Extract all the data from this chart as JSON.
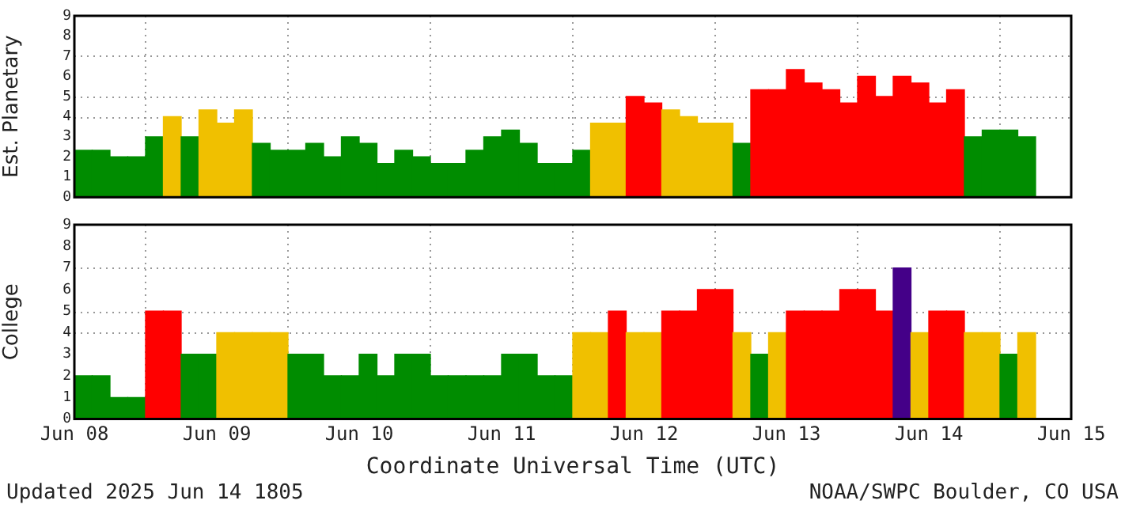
{
  "chart_data": [
    {
      "type": "bar",
      "ylabel": "Est. Planetary",
      "tick_labels": "y",
      "grid": "x",
      "x": [
        "2025-06-08T01:30",
        "2025-06-08T04:30",
        "2025-06-08T07:30",
        "2025-06-08T10:30",
        "2025-06-08T13:30",
        "2025-06-08T16:30",
        "2025-06-08T19:30",
        "2025-06-08T22:30",
        "2025-06-09T01:30",
        "2025-06-09T04:30",
        "2025-06-09T07:30",
        "2025-06-09T10:30",
        "2025-06-09T13:30",
        "2025-06-09T16:30",
        "2025-06-09T19:30",
        "2025-06-09T22:30",
        "2025-06-10T01:30",
        "2025-06-10T04:30",
        "2025-06-10T07:30",
        "2025-06-10T10:30",
        "2025-06-10T13:30",
        "2025-06-10T16:30",
        "2025-06-10T19:30",
        "2025-06-10T22:30",
        "2025-06-11T01:30",
        "2025-06-11T04:30",
        "2025-06-11T07:30",
        "2025-06-11T10:30",
        "2025-06-11T13:30",
        "2025-06-11T16:30",
        "2025-06-11T19:30",
        "2025-06-11T22:30",
        "2025-06-12T01:30",
        "2025-06-12T04:30",
        "2025-06-12T07:30",
        "2025-06-12T10:30",
        "2025-06-12T13:30",
        "2025-06-12T16:30",
        "2025-06-12T19:30",
        "2025-06-12T22:30",
        "2025-06-13T01:30",
        "2025-06-13T04:30",
        "2025-06-13T07:30",
        "2025-06-13T10:30",
        "2025-06-13T13:30",
        "2025-06-13T16:30",
        "2025-06-13T19:30",
        "2025-06-13T22:30",
        "2025-06-14T01:30",
        "2025-06-14T04:30",
        "2025-06-14T07:30",
        "2025-06-14T10:30",
        "2025-06-14T13:30",
        "2025-06-14T16:30"
      ],
      "values": [
        2.33,
        2.33,
        2,
        2,
        3,
        4,
        3,
        4.33,
        3.67,
        4.33,
        2.67,
        2.33,
        2.33,
        2.67,
        2,
        3,
        2.67,
        1.67,
        2.33,
        2,
        1.67,
        1.67,
        2.33,
        3,
        3.33,
        2.67,
        1.67,
        1.67,
        2.33,
        3.67,
        3.67,
        5,
        4.67,
        4.33,
        4,
        3.67,
        3.67,
        2.67,
        5.33,
        5.33,
        6.33,
        5.67,
        5.33,
        4.67,
        6,
        5,
        6,
        5.67,
        4.67,
        5.33,
        3,
        3.33,
        3.33,
        3
      ],
      "colors": [
        "#008c00",
        "#008c00",
        "#008c00",
        "#008c00",
        "#008c00",
        "#f0c000",
        "#008c00",
        "#f0c000",
        "#f0c000",
        "#f0c000",
        "#008c00",
        "#008c00",
        "#008c00",
        "#008c00",
        "#008c00",
        "#008c00",
        "#008c00",
        "#008c00",
        "#008c00",
        "#008c00",
        "#008c00",
        "#008c00",
        "#008c00",
        "#008c00",
        "#008c00",
        "#008c00",
        "#008c00",
        "#008c00",
        "#008c00",
        "#f0c000",
        "#f0c000",
        "#ff0000",
        "#ff0000",
        "#f0c000",
        "#f0c000",
        "#f0c000",
        "#f0c000",
        "#008c00",
        "#ff0000",
        "#ff0000",
        "#ff0000",
        "#ff0000",
        "#ff0000",
        "#ff0000",
        "#ff0000",
        "#ff0000",
        "#ff0000",
        "#ff0000",
        "#ff0000",
        "#ff0000",
        "#008c00",
        "#008c00",
        "#008c00",
        "#008c00"
      ],
      "xlim": [
        "2025-06-08",
        "2025-06-15"
      ],
      "xticks": [
        {
          "value": "2025-06-08",
          "label": null
        },
        {
          "value": "2025-06-09",
          "label": null
        },
        {
          "value": "2025-06-10",
          "label": null
        },
        {
          "value": "2025-06-11",
          "label": null
        },
        {
          "value": "2025-06-12",
          "label": null
        },
        {
          "value": "2025-06-13",
          "label": null
        },
        {
          "value": "2025-06-14",
          "label": null
        },
        {
          "value": "2025-06-15",
          "label": null
        }
      ],
      "ylim": [
        0,
        9
      ],
      "yticks": [
        0,
        1,
        2,
        3,
        4,
        5,
        6,
        7,
        8,
        9
      ],
      "ref_lines": [
        {
          "axis": "y",
          "value": 4,
          "color": "#999999",
          "line_style": "dotted"
        },
        {
          "axis": "y",
          "value": 5,
          "color": "#999999",
          "line_style": "dotted"
        },
        {
          "axis": "y",
          "value": 7,
          "color": "#999999",
          "line_style": "dotted"
        }
      ]
    },
    {
      "type": "bar",
      "ylabel": "College",
      "xlabel": "Coordinate Universal Time (UTC)",
      "grid": "x",
      "x": [
        "2025-06-08T01:30",
        "2025-06-08T04:30",
        "2025-06-08T07:30",
        "2025-06-08T10:30",
        "2025-06-08T13:30",
        "2025-06-08T16:30",
        "2025-06-08T19:30",
        "2025-06-08T22:30",
        "2025-06-09T01:30",
        "2025-06-09T04:30",
        "2025-06-09T07:30",
        "2025-06-09T10:30",
        "2025-06-09T13:30",
        "2025-06-09T16:30",
        "2025-06-09T19:30",
        "2025-06-09T22:30",
        "2025-06-10T01:30",
        "2025-06-10T04:30",
        "2025-06-10T07:30",
        "2025-06-10T10:30",
        "2025-06-10T13:30",
        "2025-06-10T16:30",
        "2025-06-10T19:30",
        "2025-06-10T22:30",
        "2025-06-11T01:30",
        "2025-06-11T04:30",
        "2025-06-11T07:30",
        "2025-06-11T10:30",
        "2025-06-11T13:30",
        "2025-06-11T16:30",
        "2025-06-11T19:30",
        "2025-06-11T22:30",
        "2025-06-12T01:30",
        "2025-06-12T04:30",
        "2025-06-12T07:30",
        "2025-06-12T10:30",
        "2025-06-12T13:30",
        "2025-06-12T16:30",
        "2025-06-12T19:30",
        "2025-06-12T22:30",
        "2025-06-13T01:30",
        "2025-06-13T04:30",
        "2025-06-13T07:30",
        "2025-06-13T10:30",
        "2025-06-13T13:30",
        "2025-06-13T16:30",
        "2025-06-13T19:30",
        "2025-06-13T22:30",
        "2025-06-14T01:30",
        "2025-06-14T04:30",
        "2025-06-14T07:30",
        "2025-06-14T10:30",
        "2025-06-14T13:30",
        "2025-06-14T16:30",
        "2025-06-14T19:30",
        "2025-06-14T22:30"
      ],
      "values": [
        2,
        2,
        1,
        1,
        5,
        5,
        3,
        3,
        4,
        4,
        4,
        4,
        3,
        3,
        2,
        2,
        3,
        2,
        3,
        3,
        2,
        2,
        2,
        2,
        3,
        3,
        2,
        2,
        4,
        4,
        5,
        4,
        4,
        5,
        5,
        6,
        6,
        4,
        3,
        4,
        5,
        5,
        5,
        6,
        6,
        5,
        7,
        4,
        5,
        5,
        4,
        4,
        3,
        4,
        0,
        0
      ],
      "colors": [
        "#008c00",
        "#008c00",
        "#008c00",
        "#008c00",
        "#ff0000",
        "#ff0000",
        "#008c00",
        "#008c00",
        "#f0c000",
        "#f0c000",
        "#f0c000",
        "#f0c000",
        "#008c00",
        "#008c00",
        "#008c00",
        "#008c00",
        "#008c00",
        "#008c00",
        "#008c00",
        "#008c00",
        "#008c00",
        "#008c00",
        "#008c00",
        "#008c00",
        "#008c00",
        "#008c00",
        "#008c00",
        "#008c00",
        "#f0c000",
        "#f0c000",
        "#ff0000",
        "#f0c000",
        "#f0c000",
        "#ff0000",
        "#ff0000",
        "#ff0000",
        "#ff0000",
        "#f0c000",
        "#008c00",
        "#f0c000",
        "#ff0000",
        "#ff0000",
        "#ff0000",
        "#ff0000",
        "#ff0000",
        "#ff0000",
        "#440088",
        "#f0c000",
        "#ff0000",
        "#ff0000",
        "#f0c000",
        "#f0c000",
        "#008c00",
        "#f0c000",
        "#008c00",
        "#008c00"
      ],
      "xlim": [
        "2025-06-08",
        "2025-06-15"
      ],
      "xticks": [
        {
          "value": "2025-06-08",
          "label": "Jun 08"
        },
        {
          "value": "2025-06-09",
          "label": "Jun 09"
        },
        {
          "value": "2025-06-10",
          "label": "Jun 10"
        },
        {
          "value": "2025-06-11",
          "label": "Jun 11"
        },
        {
          "value": "2025-06-12",
          "label": "Jun 12"
        },
        {
          "value": "2025-06-13",
          "label": "Jun 13"
        },
        {
          "value": "2025-06-14",
          "label": "Jun 14"
        },
        {
          "value": "2025-06-15",
          "label": "Jun 15"
        }
      ],
      "ylim": [
        0,
        9
      ],
      "yticks": [
        0,
        1,
        2,
        3,
        4,
        5,
        6,
        7,
        8,
        9
      ],
      "ref_lines": [
        {
          "axis": "y",
          "value": 4,
          "color": "#999999",
          "line_style": "dotted"
        },
        {
          "axis": "y",
          "value": 5,
          "color": "#999999",
          "line_style": "dotted"
        },
        {
          "axis": "y",
          "value": 7,
          "color": "#999999",
          "line_style": "dotted"
        }
      ],
      "annotations": [
        "Updated 2025 Jun 14 1805",
        "NOAA/SWPC Boulder, CO USA"
      ]
    }
  ]
}
